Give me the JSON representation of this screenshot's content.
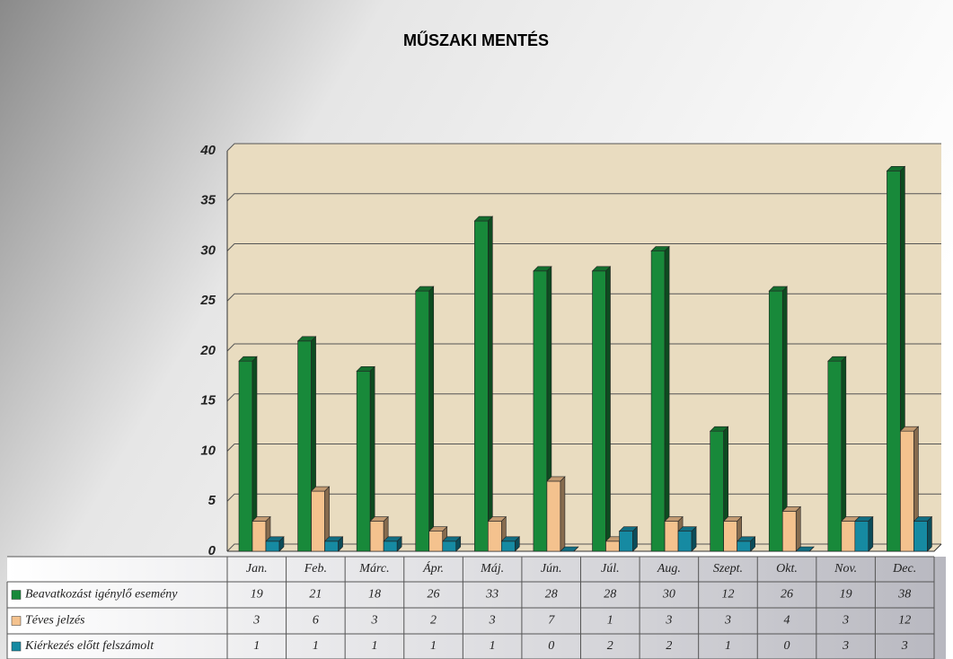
{
  "chart_data": {
    "type": "bar3d",
    "title": "MŰSZAKI MENTÉS",
    "categories": [
      "Jan.",
      "Feb.",
      "Márc.",
      "Ápr.",
      "Máj.",
      "Jún.",
      "Júl.",
      "Aug.",
      "Szept.",
      "Okt.",
      "Nov.",
      "Dec."
    ],
    "series": [
      {
        "name": "Beavatkozást igénylő esemény",
        "color": "#18893a",
        "values": [
          19,
          21,
          18,
          26,
          33,
          28,
          28,
          30,
          12,
          26,
          19,
          38
        ]
      },
      {
        "name": "Téves jelzés",
        "color": "#f4c28e",
        "values": [
          3,
          6,
          3,
          2,
          3,
          7,
          1,
          3,
          3,
          4,
          3,
          12
        ]
      },
      {
        "name": "Kiérkezés előtt felszámolt",
        "color": "#168aa2",
        "values": [
          1,
          1,
          1,
          1,
          1,
          0,
          2,
          2,
          1,
          0,
          3,
          3
        ]
      }
    ],
    "ylim": [
      0,
      40
    ],
    "yticks": [
      0,
      5,
      10,
      15,
      20,
      25,
      30,
      35,
      40
    ],
    "grid": true
  }
}
